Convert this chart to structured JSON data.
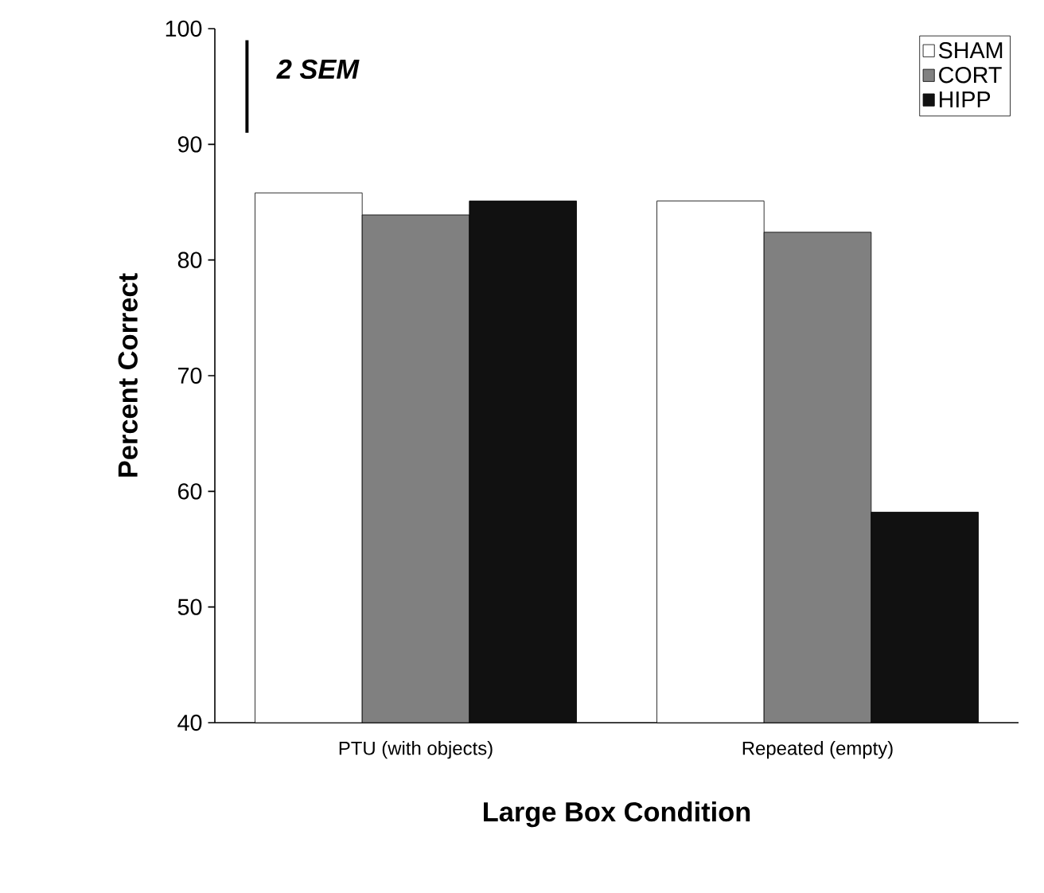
{
  "chart_data": {
    "type": "bar",
    "xlabel": "Large Box Condition",
    "ylabel": "Percent Correct",
    "categories": [
      "PTU (with objects)",
      "Repeated (empty)"
    ],
    "series": [
      {
        "name": "SHAM",
        "color": "#ffffff",
        "values": [
          85.8,
          85.1
        ]
      },
      {
        "name": "CORT",
        "color": "#808080",
        "values": [
          83.9,
          82.4
        ]
      },
      {
        "name": "HIPP",
        "color": "#111111",
        "values": [
          85.1,
          58.2
        ]
      }
    ],
    "ylim": [
      40,
      100
    ],
    "yticks": [
      40,
      50,
      60,
      70,
      80,
      90,
      100
    ],
    "annotations": [
      {
        "text": "2 SEM"
      }
    ],
    "grid": false,
    "legend": "top right"
  }
}
